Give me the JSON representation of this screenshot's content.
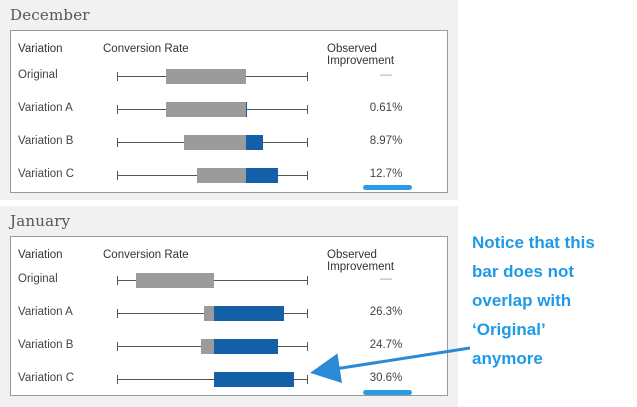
{
  "sections": [
    {
      "month": "December",
      "headers": {
        "variation": "Variation",
        "conversion": "Conversion Rate",
        "observed": "Observed Improvement"
      },
      "rows": [
        {
          "label": "Original",
          "improvement": "—",
          "whisker": [
            0.0,
            1.0
          ],
          "grey": [
            0.26,
            0.68
          ],
          "blue": null
        },
        {
          "label": "Variation A",
          "improvement": "0.61%",
          "whisker": [
            0.0,
            1.0
          ],
          "grey": [
            0.26,
            0.68
          ],
          "blue": [
            0.68,
            0.685
          ]
        },
        {
          "label": "Variation B",
          "improvement": "8.97%",
          "whisker": [
            0.0,
            1.0
          ],
          "grey": [
            0.35,
            0.68
          ],
          "blue": [
            0.68,
            0.77
          ]
        },
        {
          "label": "Variation C",
          "improvement": "12.7%",
          "whisker": [
            0.0,
            1.0
          ],
          "grey": [
            0.42,
            0.68
          ],
          "blue": [
            0.68,
            0.85
          ]
        }
      ]
    },
    {
      "month": "January",
      "headers": {
        "variation": "Variation",
        "conversion": "Conversion Rate",
        "observed": "Observed Improvement"
      },
      "rows": [
        {
          "label": "Original",
          "improvement": "—",
          "whisker": [
            0.0,
            1.0
          ],
          "grey": [
            0.1,
            0.51
          ],
          "blue": null
        },
        {
          "label": "Variation A",
          "improvement": "26.3%",
          "whisker": [
            0.0,
            1.0
          ],
          "grey": [
            0.46,
            0.51
          ],
          "blue": [
            0.51,
            0.88
          ]
        },
        {
          "label": "Variation B",
          "improvement": "24.7%",
          "whisker": [
            0.0,
            1.0
          ],
          "grey": [
            0.44,
            0.51
          ],
          "blue": [
            0.51,
            0.85
          ]
        },
        {
          "label": "Variation C",
          "improvement": "30.6%",
          "whisker": [
            0.0,
            1.0
          ],
          "grey": null,
          "blue": [
            0.51,
            0.93
          ]
        }
      ]
    }
  ],
  "callout": {
    "lines": [
      "Notice that this",
      "bar does not",
      "overlap with",
      "‘Original’",
      "anymore"
    ]
  },
  "colors": {
    "accent": "#1e9ae6",
    "bar_blue": "#1460a8",
    "bar_grey": "#9b9b9b"
  }
}
